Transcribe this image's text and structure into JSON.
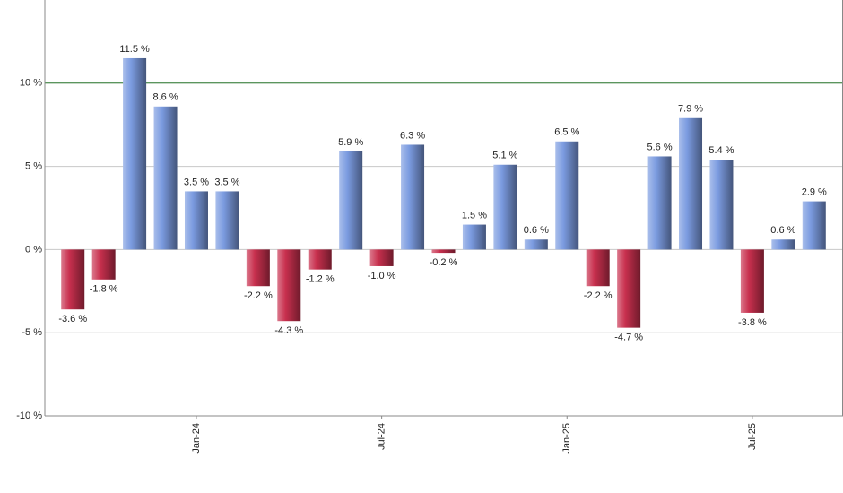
{
  "chart_data": {
    "type": "bar",
    "categories": [
      null,
      null,
      null,
      null,
      "Jan-24",
      null,
      null,
      null,
      null,
      null,
      "Jul-24",
      null,
      null,
      null,
      null,
      null,
      "Jan-25",
      null,
      null,
      null,
      null,
      null,
      "Jul-25",
      null,
      null
    ],
    "values": [
      -3.6,
      -1.8,
      11.5,
      8.6,
      3.5,
      3.5,
      -2.2,
      -4.3,
      -1.2,
      5.9,
      -1.0,
      6.3,
      -0.2,
      1.5,
      5.1,
      0.6,
      6.5,
      -2.2,
      -4.7,
      5.6,
      7.9,
      5.4,
      -3.8,
      0.6,
      2.9
    ],
    "value_labels": [
      "-3.6 %",
      "-1.8 %",
      "11.5 %",
      "8.6 %",
      "3.5 %",
      "3.5 %",
      "-2.2 %",
      "-4.3 %",
      "-1.2 %",
      "5.9 %",
      "-1.0 %",
      "6.3 %",
      "-0.2 %",
      "1.5 %",
      "5.1 %",
      "0.6 %",
      "6.5 %",
      "-2.2 %",
      "-4.7 %",
      "5.6 %",
      "7.9 %",
      "5.4 %",
      "-3.8 %",
      "0.6 %",
      "2.9 %"
    ],
    "positive_color": "#7b9be0",
    "negative_color": "#c8304e",
    "ylim": [
      -10,
      15
    ],
    "yticks": [
      {
        "value": -10,
        "label": "-10 %"
      },
      {
        "value": -5,
        "label": "-5 %"
      },
      {
        "value": 0,
        "label": "0 %"
      },
      {
        "value": 5,
        "label": "5 %"
      },
      {
        "value": 10,
        "label": "10 %"
      }
    ],
    "grid": true,
    "reference_line": {
      "value": 10,
      "color": "#2e7d32"
    }
  }
}
